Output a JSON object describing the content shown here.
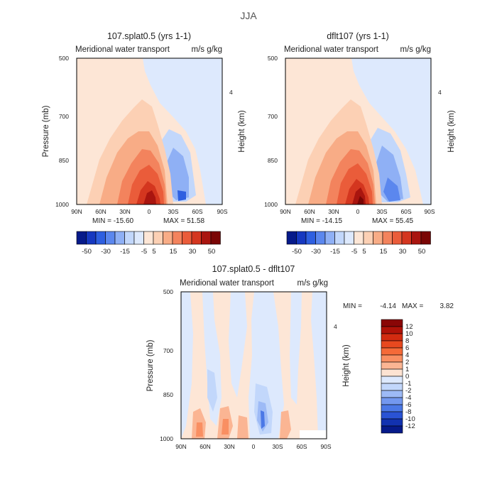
{
  "page": {
    "title": "JJA"
  },
  "chart_data": [
    {
      "type": "heatmap",
      "title": "107.splat0.5 (yrs 1-1)",
      "subtitle": "Meridional water transport",
      "units": "m/s g/kg",
      "ylabel": "Pressure (mb)",
      "y2label": "Height (km)",
      "x_ticks": [
        "90N",
        "60N",
        "30N",
        "0",
        "30S",
        "60S",
        "90S"
      ],
      "y_ticks": [
        "500",
        "700",
        "850",
        "1000"
      ],
      "y2_ticks": [
        "4"
      ],
      "min_label": "MIN = -15.60",
      "max_label": "MAX = 51.58",
      "colorbar_levels": [
        "-50",
        "-30",
        "-15",
        "-5",
        "5",
        "15",
        "30",
        "50"
      ]
    },
    {
      "type": "heatmap",
      "title": "dflt107 (yrs 1-1)",
      "subtitle": "Meridional water transport",
      "units": "m/s g/kg",
      "ylabel": "",
      "y2label": "Height (km)",
      "x_ticks": [
        "90N",
        "60N",
        "30N",
        "0",
        "30S",
        "60S",
        "90S"
      ],
      "y_ticks": [
        "500",
        "700",
        "850",
        "1000"
      ],
      "y2_ticks": [
        "4"
      ],
      "min_label": "MIN = -14.15",
      "max_label": "MAX = 55.45",
      "colorbar_levels": [
        "-50",
        "-30",
        "-15",
        "-5",
        "5",
        "15",
        "30",
        "50"
      ]
    },
    {
      "type": "heatmap",
      "title": "107.splat0.5 - dflt107",
      "subtitle": "Meridional water transport",
      "units": "m/s g/kg",
      "ylabel": "Pressure (mb)",
      "y2label": "Height (km)",
      "x_ticks": [
        "90N",
        "60N",
        "30N",
        "0",
        "30S",
        "60S",
        "90S"
      ],
      "y_ticks": [
        "500",
        "700",
        "850",
        "1000"
      ],
      "y2_ticks": [
        "4"
      ],
      "min_label": "MIN =",
      "min_value": "-4.14",
      "max_label": "MAX =",
      "max_value": "3.82",
      "colorbar_levels": [
        "12",
        "10",
        "8",
        "6",
        "4",
        "2",
        "1",
        "0",
        "-1",
        "-2",
        "-4",
        "-6",
        "-8",
        "-10",
        "-12"
      ]
    }
  ],
  "colors": {
    "top_scale": [
      "#061a8a",
      "#1638c0",
      "#2e5fe0",
      "#5b87ee",
      "#8fb0f5",
      "#c2d7fb",
      "#dde9fd",
      "#fde6d6",
      "#fcd0b4",
      "#f8ac86",
      "#f3835d",
      "#ea5c3a",
      "#d4361f",
      "#a9150f",
      "#7a0605"
    ],
    "diff_scale": [
      "#8a0606",
      "#b01208",
      "#d22b10",
      "#e8491f",
      "#f56a38",
      "#f98f62",
      "#fbb593",
      "#fde3d2",
      "#dde9fd",
      "#c2d7fb",
      "#9dbaf6",
      "#7398ef",
      "#4b78e6",
      "#2a53d4",
      "#1232b0",
      "#061a8a"
    ]
  }
}
